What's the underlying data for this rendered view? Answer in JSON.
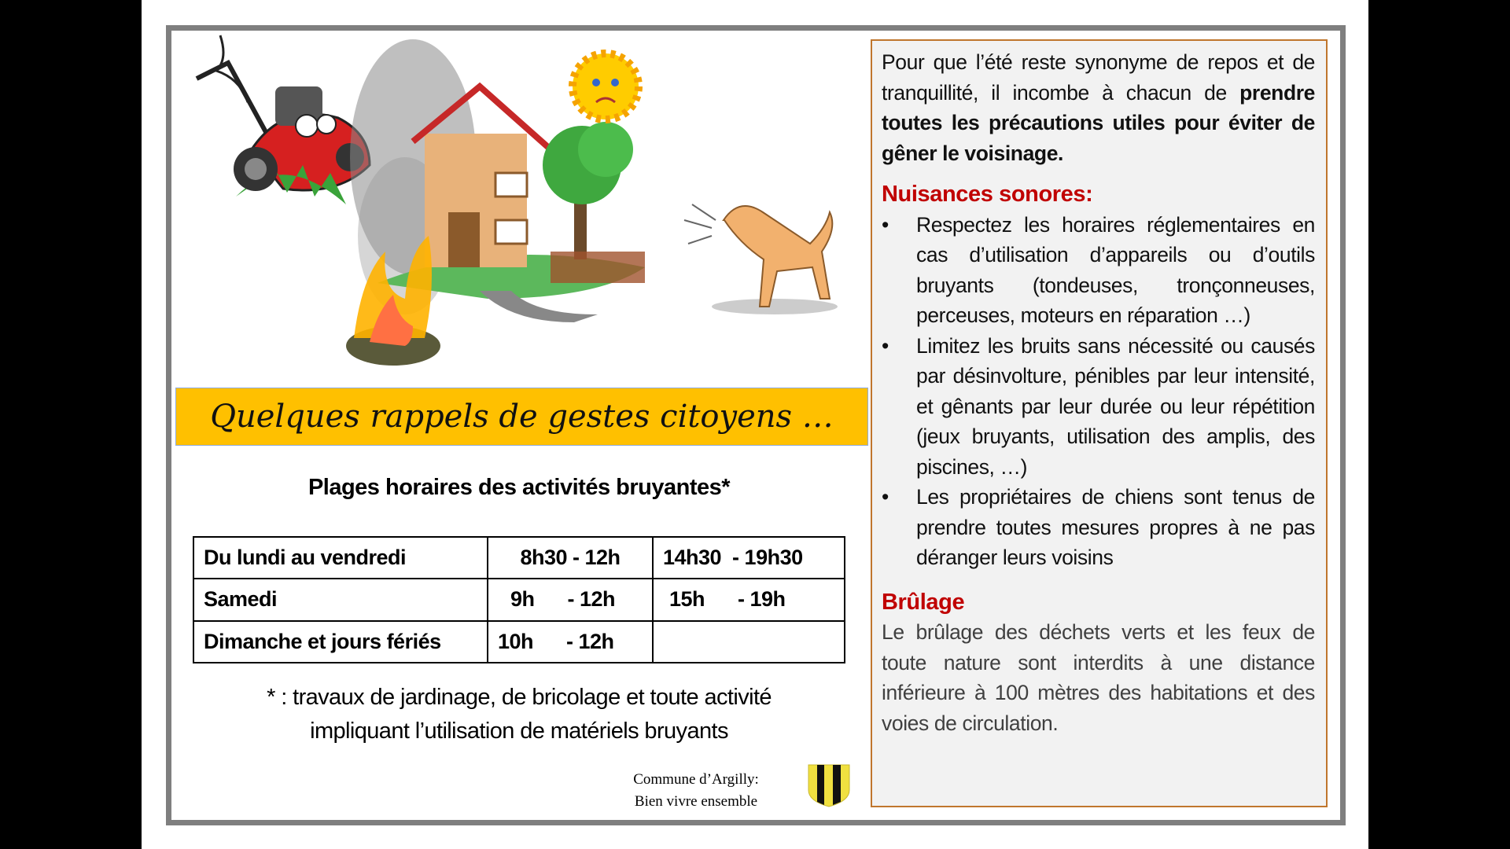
{
  "banner": {
    "title": "Quelques rappels de gestes citoyens …",
    "color": "#ffc000"
  },
  "illustration": {
    "icons": [
      "lawnmower-icon",
      "house-icon",
      "sun-icon",
      "tree-icon",
      "dog-icon",
      "fire-icon",
      "smoke-icon"
    ]
  },
  "schedule": {
    "title": "Plages horaires des activités bruyantes*",
    "rows": [
      {
        "day": "Du lundi au vendredi",
        "morning": "8h30 - 12h",
        "afternoon": "14h30  - 19h30"
      },
      {
        "day": "Samedi",
        "morning": "9h      - 12h",
        "afternoon": "15h      - 19h"
      },
      {
        "day": "Dimanche et jours fériés",
        "morning": "10h      - 12h",
        "afternoon": ""
      }
    ],
    "footnote_line1": "* : travaux de jardinage, de bricolage  et toute activité",
    "footnote_line2": "impliquant l’utilisation de matériels bruyants"
  },
  "signature": {
    "line1": "Commune d’Argilly:",
    "line2": "Bien vivre ensemble",
    "shield_colors": [
      "#f0e040",
      "#000000"
    ]
  },
  "info": {
    "intro_plain": "Pour que l’été reste synonyme de repos et de tranquillité, il incombe à chacun de ",
    "intro_bold": "prendre toutes les précautions utiles pour éviter de gêner le voisinage.",
    "noise_heading": "Nuisances sonores:",
    "noise_items": [
      "Respectez les horaires réglementaires en cas d’utilisation d’appareils ou d’outils bruyants (tondeuses, tronçonneuses, perceuses, moteurs en réparation …)",
      "Limitez les bruits sans nécessité ou causés par désinvolture, pénibles par leur intensité, et gênants par leur durée ou leur répétition (jeux bruyants, utilisation des amplis, des piscines, …)",
      "Les propriétaires de chiens sont tenus de prendre toutes mesures propres à ne pas déranger leurs voisins"
    ],
    "burn_heading": "Brûlage",
    "burn_text": "Le brûlage des déchets verts et les feux de toute nature sont interdits à une distance inférieure à 100 mètres des habitations et des voies de circulation.",
    "heading_color": "#c00000"
  }
}
